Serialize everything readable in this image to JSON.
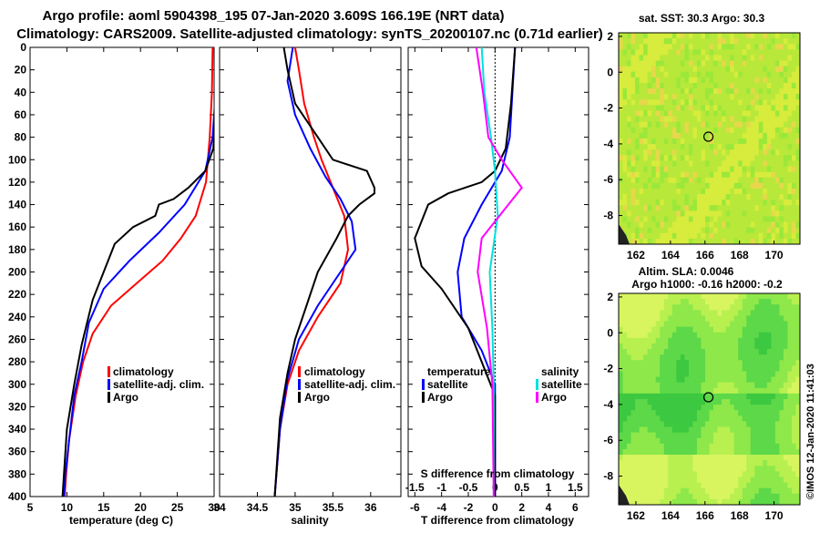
{
  "header": {
    "line1": "Argo profile: aoml 5904398_195 07-Jan-2020 3.609S 166.19E (NRT data)",
    "line2": "Climatology: CARS2009. Satellite-adjusted climatology: synTS_20200107.nc (0.71d earlier)"
  },
  "credit": "©IMOS 12-Jan-2020 11:41:03",
  "colors": {
    "climatology": "#ff0000",
    "satellite": "#0000ff",
    "argo": "#000000",
    "satellite_s": "#00e0e0",
    "argo_s": "#ff00ff"
  },
  "chart_data": [
    {
      "type": "line",
      "id": "temperature",
      "xlabel": "temperature (deg C)",
      "xlim": [
        5,
        30
      ],
      "xticks": [
        5,
        10,
        15,
        20,
        25,
        30
      ],
      "ylim": [
        400,
        0
      ],
      "yticks": [
        0,
        20,
        40,
        60,
        80,
        100,
        120,
        140,
        160,
        180,
        200,
        220,
        240,
        260,
        280,
        300,
        320,
        340,
        360,
        380,
        400
      ],
      "legend": [
        "climatology",
        "satellite-adj. clim.",
        "Argo"
      ],
      "series": [
        {
          "name": "climatology",
          "color": "#ff0000",
          "points": [
            [
              29.8,
              0
            ],
            [
              29.7,
              40
            ],
            [
              29.4,
              80
            ],
            [
              28.9,
              120
            ],
            [
              27.5,
              150
            ],
            [
              25.5,
              170
            ],
            [
              23,
              190
            ],
            [
              19.5,
              210
            ],
            [
              16,
              230
            ],
            [
              13.5,
              255
            ],
            [
              12.2,
              280
            ],
            [
              11.2,
              310
            ],
            [
              10.3,
              350
            ],
            [
              9.9,
              380
            ],
            [
              9.7,
              400
            ]
          ]
        },
        {
          "name": "satellite-adj. clim.",
          "color": "#0000ff",
          "points": [
            [
              30.3,
              0
            ],
            [
              30.2,
              40
            ],
            [
              29.8,
              80
            ],
            [
              28.8,
              110
            ],
            [
              26,
              140
            ],
            [
              22.5,
              165
            ],
            [
              18.5,
              190
            ],
            [
              15,
              215
            ],
            [
              13,
              245
            ],
            [
              12,
              280
            ],
            [
              11,
              310
            ],
            [
              10.3,
              350
            ],
            [
              9.8,
              380
            ],
            [
              9.6,
              400
            ]
          ]
        },
        {
          "name": "Argo",
          "color": "#000000",
          "points": [
            [
              30.3,
              0
            ],
            [
              30.2,
              50
            ],
            [
              29.9,
              90
            ],
            [
              28.8,
              110
            ],
            [
              26.5,
              125
            ],
            [
              24.5,
              135
            ],
            [
              22.5,
              140
            ],
            [
              22,
              150
            ],
            [
              19,
              160
            ],
            [
              16.5,
              175
            ],
            [
              15,
              200
            ],
            [
              13.5,
              225
            ],
            [
              12,
              265
            ],
            [
              11,
              300
            ],
            [
              10,
              340
            ],
            [
              9.4,
              400
            ]
          ]
        }
      ]
    },
    {
      "type": "line",
      "id": "salinity",
      "xlabel": "salinity",
      "xlim": [
        34,
        36.4
      ],
      "xticks": [
        34,
        34.5,
        35,
        35.5,
        36
      ],
      "ylim": [
        400,
        0
      ],
      "legend": [
        "climatology",
        "satellite-adj. clim.",
        "Argo"
      ],
      "series": [
        {
          "name": "climatology",
          "color": "#ff0000",
          "points": [
            [
              35.0,
              0
            ],
            [
              35.05,
              20
            ],
            [
              35.12,
              50
            ],
            [
              35.25,
              80
            ],
            [
              35.35,
              100
            ],
            [
              35.5,
              125
            ],
            [
              35.65,
              150
            ],
            [
              35.7,
              180
            ],
            [
              35.6,
              210
            ],
            [
              35.3,
              240
            ],
            [
              35.05,
              270
            ],
            [
              34.9,
              300
            ],
            [
              34.8,
              340
            ],
            [
              34.73,
              400
            ]
          ]
        },
        {
          "name": "satellite-adj. clim.",
          "color": "#0000ff",
          "points": [
            [
              34.97,
              0
            ],
            [
              34.9,
              30
            ],
            [
              35.0,
              60
            ],
            [
              35.2,
              90
            ],
            [
              35.4,
              115
            ],
            [
              35.6,
              135
            ],
            [
              35.75,
              155
            ],
            [
              35.8,
              180
            ],
            [
              35.6,
              200
            ],
            [
              35.3,
              230
            ],
            [
              35.05,
              260
            ],
            [
              34.9,
              295
            ],
            [
              34.8,
              340
            ],
            [
              34.73,
              400
            ]
          ]
        },
        {
          "name": "Argo",
          "color": "#000000",
          "points": [
            [
              34.85,
              0
            ],
            [
              34.9,
              20
            ],
            [
              35.0,
              50
            ],
            [
              35.3,
              80
            ],
            [
              35.5,
              100
            ],
            [
              35.95,
              110
            ],
            [
              36.05,
              125
            ],
            [
              36.05,
              130
            ],
            [
              35.85,
              140
            ],
            [
              35.7,
              150
            ],
            [
              35.55,
              170
            ],
            [
              35.3,
              200
            ],
            [
              35.15,
              230
            ],
            [
              35.0,
              260
            ],
            [
              34.9,
              290
            ],
            [
              34.8,
              330
            ],
            [
              34.73,
              400
            ]
          ]
        }
      ]
    },
    {
      "type": "line",
      "id": "difference",
      "xlabel": "T difference from climatology",
      "xlabel2": "S difference from climatology",
      "xlim": [
        -6.5,
        7
      ],
      "xticks": [
        -6,
        -4,
        -2,
        0,
        2,
        4,
        6
      ],
      "xticks2": [
        "-1.5",
        "-1",
        "-0.5",
        "0",
        "0.5",
        "1",
        "1.5"
      ],
      "ylim": [
        400,
        0
      ],
      "legend_t": {
        "title": "temperature",
        "items": [
          "satellite",
          "Argo"
        ]
      },
      "legend_s": {
        "title": "salinity",
        "items": [
          "satellite",
          "Argo"
        ]
      },
      "series": [
        {
          "name": "T satellite",
          "color": "#0000ff",
          "points": [
            [
              1.5,
              0
            ],
            [
              1.3,
              40
            ],
            [
              1.1,
              80
            ],
            [
              0.5,
              110
            ],
            [
              -1,
              140
            ],
            [
              -2.3,
              170
            ],
            [
              -2.8,
              200
            ],
            [
              -2.5,
              240
            ],
            [
              -1,
              270
            ],
            [
              0,
              300
            ],
            [
              0,
              400
            ]
          ]
        },
        {
          "name": "T Argo",
          "color": "#000000",
          "points": [
            [
              1.5,
              0
            ],
            [
              1.2,
              50
            ],
            [
              0.8,
              90
            ],
            [
              0,
              110
            ],
            [
              -1,
              120
            ],
            [
              -3.5,
              130
            ],
            [
              -5,
              140
            ],
            [
              -6,
              170
            ],
            [
              -5.5,
              195
            ],
            [
              -4,
              215
            ],
            [
              -2,
              250
            ],
            [
              -1,
              280
            ],
            [
              0,
              310
            ],
            [
              0,
              400
            ]
          ]
        },
        {
          "name": "S satellite",
          "color": "#00e0e0",
          "points": [
            [
              -1.0,
              0
            ],
            [
              -0.8,
              40
            ],
            [
              -0.3,
              80
            ],
            [
              0,
              110
            ],
            [
              0.2,
              150
            ],
            [
              -0.4,
              200
            ],
            [
              -0.2,
              250
            ],
            [
              -0.1,
              300
            ],
            [
              -0.1,
              400
            ]
          ]
        },
        {
          "name": "S Argo",
          "color": "#ff00ff",
          "points": [
            [
              -1.4,
              0
            ],
            [
              -0.9,
              40
            ],
            [
              -0.5,
              80
            ],
            [
              0.5,
              100
            ],
            [
              2,
              125
            ],
            [
              1,
              140
            ],
            [
              -1,
              170
            ],
            [
              -1.3,
              200
            ],
            [
              -0.6,
              250
            ],
            [
              -0.2,
              300
            ],
            [
              -0.1,
              400
            ]
          ]
        }
      ]
    },
    {
      "type": "heatmap",
      "id": "sst_map",
      "title": "sat. SST: 30.3 Argo: 30.3",
      "xticks": [
        162,
        164,
        166,
        168,
        170
      ],
      "yticks": [
        2,
        0,
        -2,
        -4,
        -6,
        -8
      ],
      "xlim": [
        161,
        171.5
      ],
      "ylim": [
        -9.6,
        2.2
      ],
      "marker": [
        166.2,
        -3.6
      ]
    },
    {
      "type": "heatmap",
      "id": "sla_map",
      "title": "Altim. SLA: 0.0046",
      "subtitle": "Argo h1000: -0.16 h2000: -0.2",
      "xticks": [
        162,
        164,
        166,
        168,
        170
      ],
      "yticks": [
        2,
        0,
        -2,
        -4,
        -6,
        -8
      ],
      "xlim": [
        161,
        171.5
      ],
      "ylim": [
        -9.6,
        2.2
      ],
      "marker": [
        166.2,
        -3.6
      ]
    }
  ]
}
